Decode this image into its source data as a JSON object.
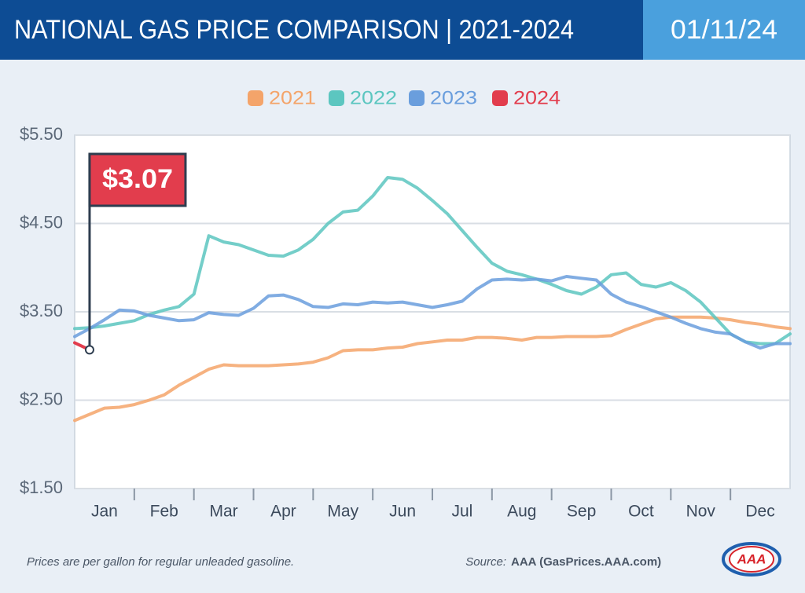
{
  "header": {
    "title": "NATIONAL GAS PRICE COMPARISON | 2021-2024",
    "date": "01/11/24"
  },
  "chart_data": {
    "type": "line",
    "x": [
      0,
      0.25,
      0.5,
      0.75,
      1,
      1.25,
      1.5,
      1.75,
      2,
      2.25,
      2.5,
      2.75,
      3,
      3.25,
      3.5,
      3.75,
      4,
      4.25,
      4.5,
      4.75,
      5,
      5.25,
      5.5,
      5.75,
      6,
      6.25,
      6.5,
      6.75,
      7,
      7.25,
      7.5,
      7.75,
      8,
      8.25,
      8.5,
      8.75,
      9,
      9.25,
      9.5,
      9.75,
      10,
      10.25,
      10.5,
      10.75,
      11,
      11.25,
      11.5,
      11.75,
      12
    ],
    "xlim": [
      0,
      12
    ],
    "xticks": [
      {
        "value": 0.5,
        "label": "Jan"
      },
      {
        "value": 1.5,
        "label": "Feb"
      },
      {
        "value": 2.5,
        "label": "Mar"
      },
      {
        "value": 3.5,
        "label": "Apr"
      },
      {
        "value": 4.5,
        "label": "May"
      },
      {
        "value": 5.5,
        "label": "Jun"
      },
      {
        "value": 6.5,
        "label": "Jul"
      },
      {
        "value": 7.5,
        "label": "Aug"
      },
      {
        "value": 8.5,
        "label": "Sep"
      },
      {
        "value": 9.5,
        "label": "Oct"
      },
      {
        "value": 10.5,
        "label": "Nov"
      },
      {
        "value": 11.5,
        "label": "Dec"
      }
    ],
    "ylim": [
      1.5,
      5.5
    ],
    "yticks": [
      {
        "value": 5.5,
        "label": "$5.50"
      },
      {
        "value": 4.5,
        "label": "$4.50"
      },
      {
        "value": 3.5,
        "label": "$3.50"
      },
      {
        "value": 2.5,
        "label": "$2.50"
      },
      {
        "value": 1.5,
        "label": "$1.50"
      }
    ],
    "grid": true,
    "series": [
      {
        "name": "2021",
        "color": "#f4a46a",
        "values": [
          2.27,
          2.34,
          2.41,
          2.42,
          2.45,
          2.5,
          2.56,
          2.67,
          2.76,
          2.85,
          2.9,
          2.89,
          2.89,
          2.89,
          2.9,
          2.91,
          2.93,
          2.98,
          3.06,
          3.07,
          3.07,
          3.09,
          3.1,
          3.14,
          3.16,
          3.18,
          3.18,
          3.21,
          3.21,
          3.2,
          3.18,
          3.21,
          3.21,
          3.22,
          3.22,
          3.22,
          3.23,
          3.3,
          3.36,
          3.42,
          3.44,
          3.44,
          3.44,
          3.43,
          3.41,
          3.38,
          3.36,
          3.33,
          3.31
        ]
      },
      {
        "name": "2022",
        "color": "#5cc6c0",
        "values": [
          3.31,
          3.32,
          3.34,
          3.37,
          3.4,
          3.47,
          3.52,
          3.56,
          3.7,
          4.36,
          4.29,
          4.26,
          4.2,
          4.14,
          4.13,
          4.2,
          4.32,
          4.5,
          4.63,
          4.65,
          4.81,
          5.02,
          5.0,
          4.9,
          4.76,
          4.61,
          4.42,
          4.23,
          4.05,
          3.96,
          3.92,
          3.87,
          3.81,
          3.74,
          3.7,
          3.78,
          3.92,
          3.94,
          3.81,
          3.78,
          3.83,
          3.74,
          3.61,
          3.43,
          3.25,
          3.16,
          3.14,
          3.14,
          3.25
        ]
      },
      {
        "name": "2023",
        "color": "#6a9edd",
        "values": [
          3.22,
          3.31,
          3.41,
          3.52,
          3.51,
          3.46,
          3.43,
          3.4,
          3.41,
          3.49,
          3.47,
          3.46,
          3.54,
          3.68,
          3.69,
          3.64,
          3.56,
          3.55,
          3.59,
          3.58,
          3.61,
          3.6,
          3.61,
          3.58,
          3.55,
          3.58,
          3.62,
          3.76,
          3.86,
          3.87,
          3.86,
          3.87,
          3.85,
          3.9,
          3.88,
          3.86,
          3.7,
          3.61,
          3.56,
          3.5,
          3.44,
          3.37,
          3.31,
          3.27,
          3.25,
          3.16,
          3.09,
          3.14,
          3.14
        ]
      },
      {
        "name": "2024",
        "color": "#e23d4d",
        "values": [
          3.15,
          3.07,
          null,
          null,
          null,
          null,
          null,
          null,
          null,
          null,
          null,
          null,
          null,
          null,
          null,
          null,
          null,
          null,
          null,
          null,
          null,
          null,
          null,
          null,
          null,
          null,
          null,
          null,
          null,
          null,
          null,
          null,
          null,
          null,
          null,
          null,
          null,
          null,
          null,
          null,
          null,
          null,
          null,
          null,
          null,
          null,
          null,
          null,
          null
        ],
        "value_labels": [
          null,
          "$3.07",
          null,
          null,
          null,
          null,
          null,
          null,
          null,
          null,
          null,
          null,
          null,
          null,
          null,
          null,
          null,
          null,
          null,
          null,
          null,
          null,
          null,
          null,
          null,
          null,
          null,
          null,
          null,
          null,
          null,
          null,
          null,
          null,
          null,
          null,
          null,
          null,
          null,
          null,
          null,
          null,
          null,
          null,
          null,
          null,
          null,
          null,
          null
        ]
      }
    ]
  },
  "footer": {
    "note": "Prices are per gallon for regular unleaded gasoline.",
    "source_label": "Source:",
    "source": "AAA (GasPrices.AAA.com)",
    "logo": "AAA"
  }
}
